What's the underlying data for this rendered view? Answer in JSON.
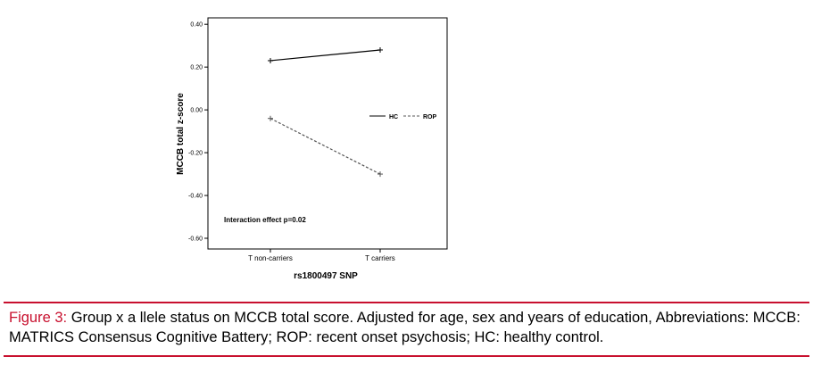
{
  "chart_data": {
    "type": "line",
    "title": "",
    "xlabel": "rs1800497 SNP",
    "ylabel": "MCCB total z-score",
    "categories": [
      "T non-carriers",
      "T carriers"
    ],
    "series": [
      {
        "name": "HC",
        "values": [
          0.23,
          0.28
        ],
        "style": "solid",
        "color": "#000000"
      },
      {
        "name": "ROP",
        "values": [
          -0.04,
          -0.3
        ],
        "style": "dashed",
        "color": "#555555"
      }
    ],
    "ylim": [
      -0.65,
      0.43
    ],
    "yticks": [
      0.4,
      0.2,
      0.0,
      -0.2,
      -0.4,
      -0.6
    ],
    "ytick_labels": [
      "0.40",
      "0.20",
      "0.00",
      "-0.20",
      "-0.40",
      "-0.60"
    ],
    "grid": false,
    "legend_position": "right",
    "annotation": "Interaction effect p=0.02"
  },
  "caption": {
    "label": "Figure 3:",
    "text": " Group x a llele status on MCCB total score. Adjusted for age, sex and years of education, Abbreviations: MCCB: MATRICS Consensus Cognitive Battery; ROP: recent onset psychosis; HC: healthy control."
  },
  "colors": {
    "accent_red": "#c8102e"
  }
}
